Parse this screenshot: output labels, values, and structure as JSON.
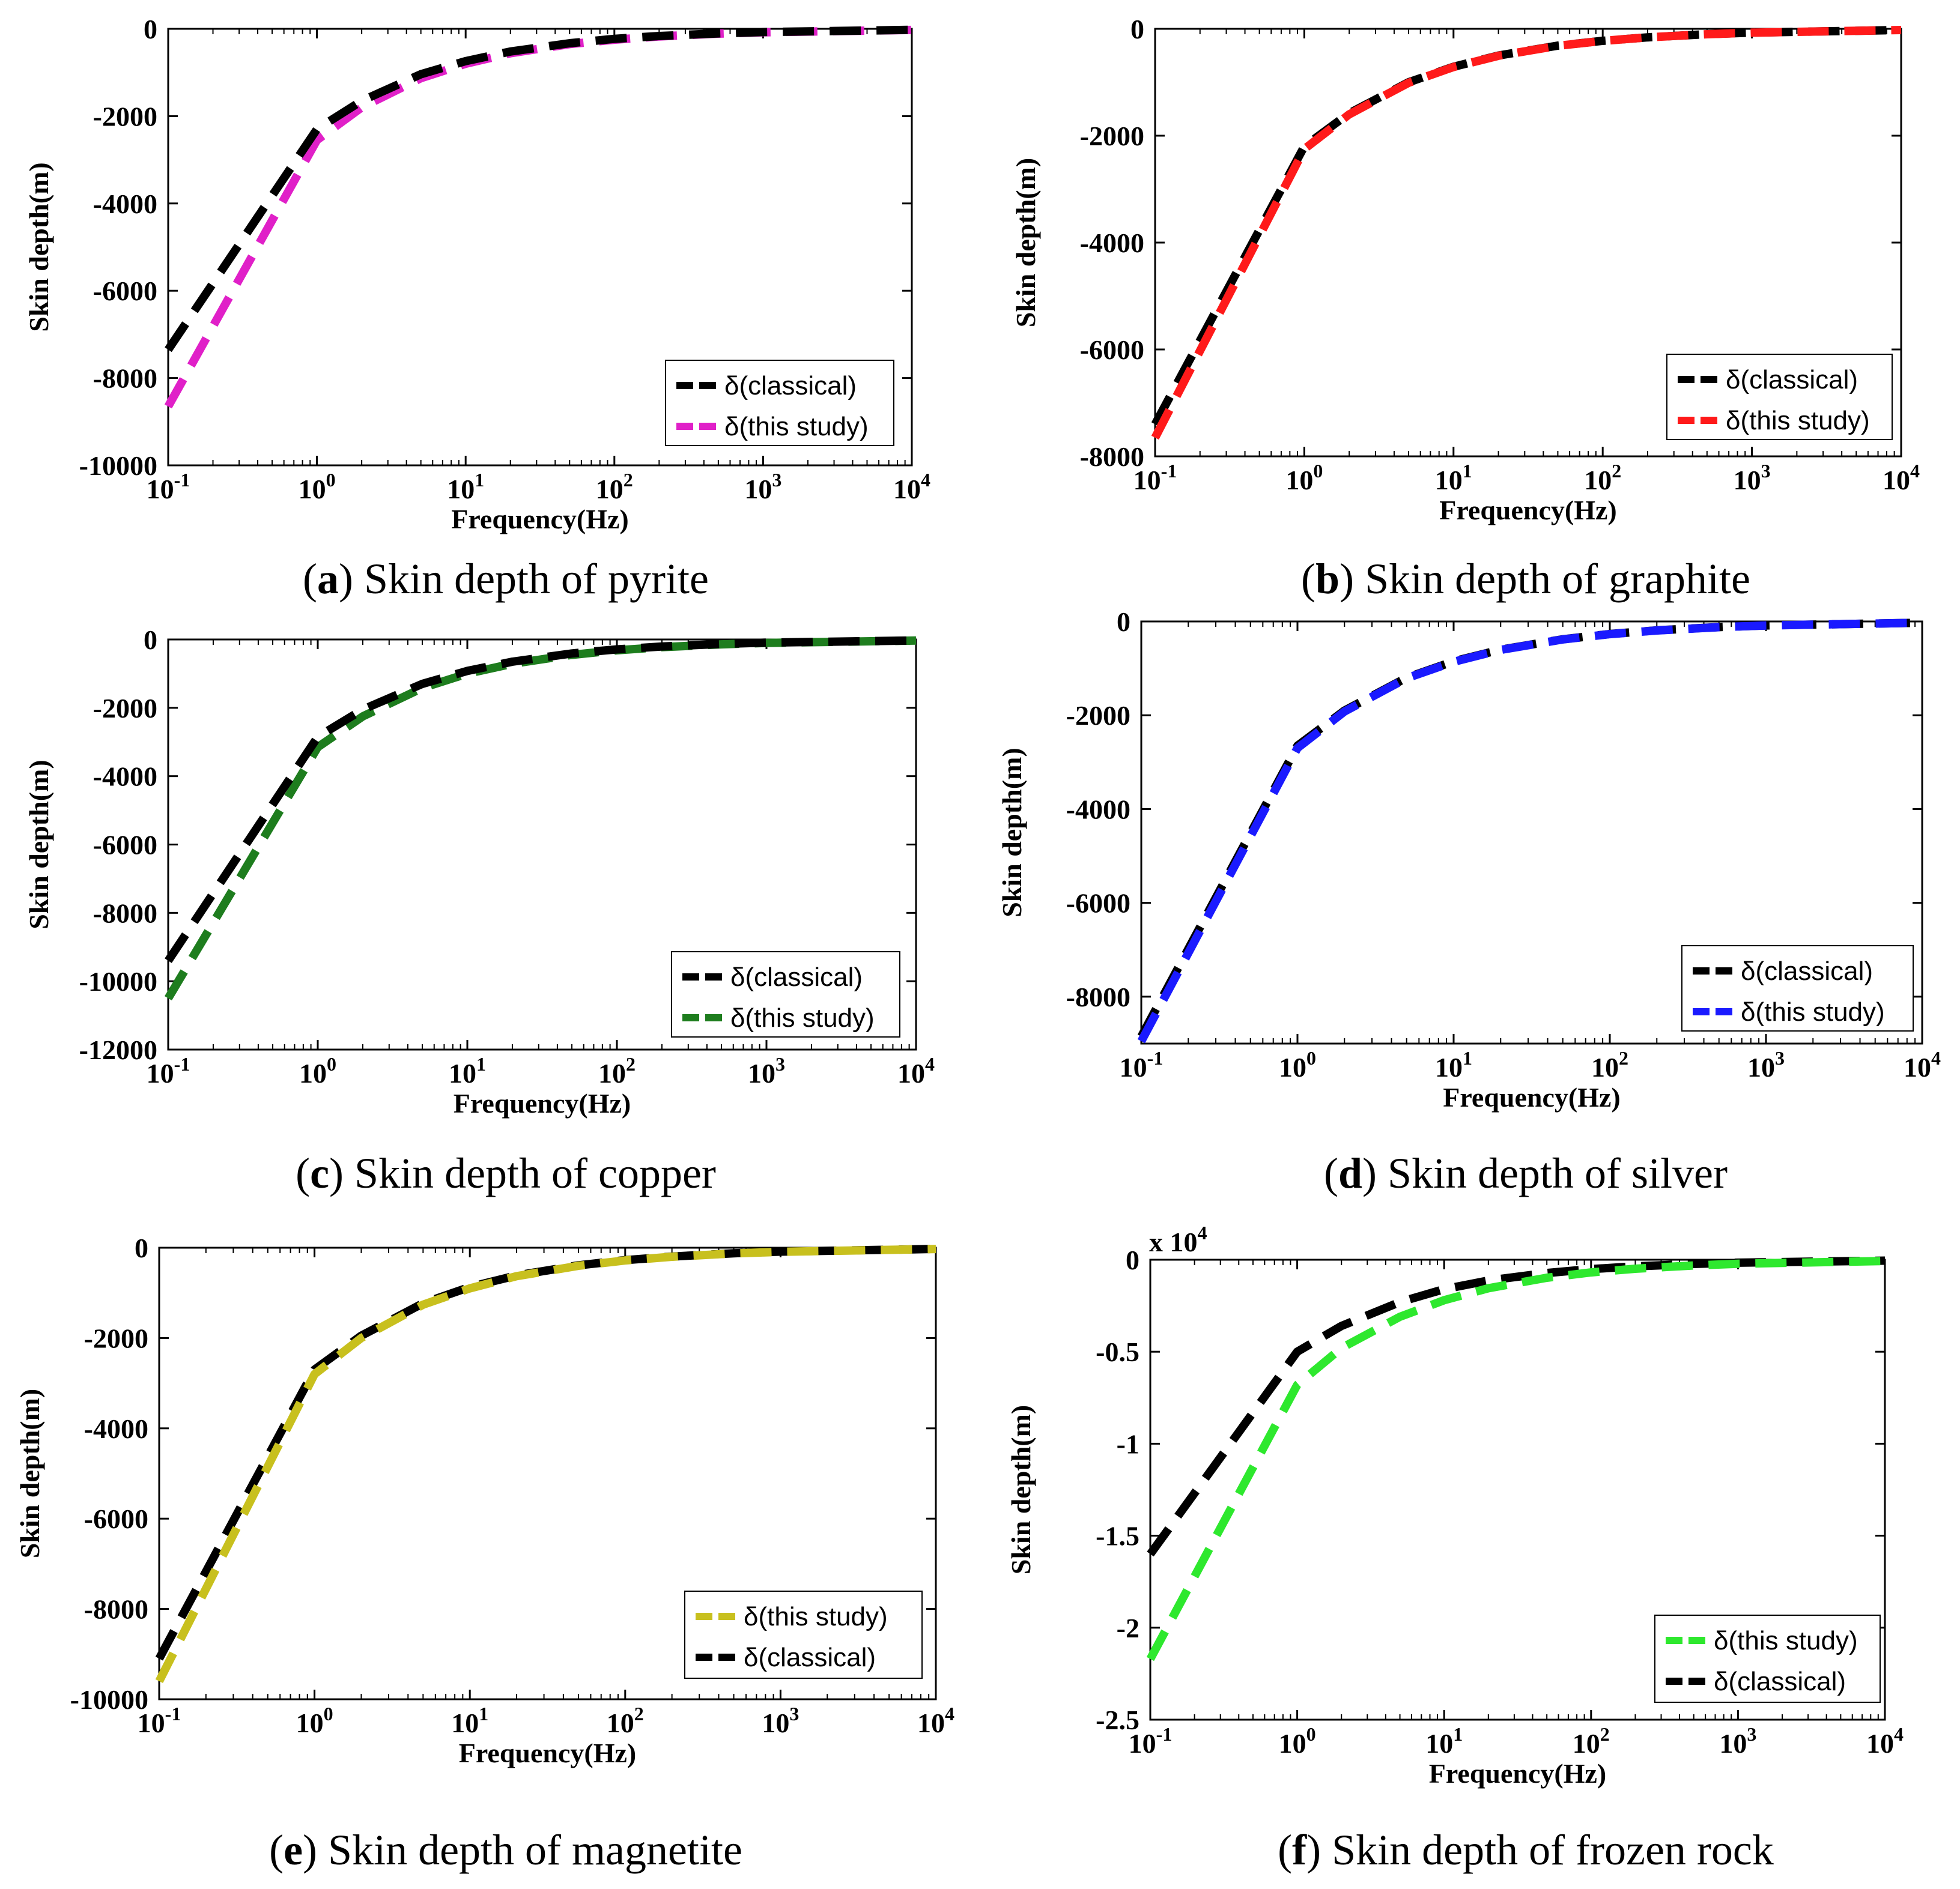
{
  "figure": {
    "axes_labels": {
      "x": "Frequency(Hz)",
      "y": "Skin depth(m)"
    },
    "legend_labels": {
      "classical": "δ(classical)",
      "this_study": "δ(this study)"
    },
    "colors": {
      "classical": "#000000",
      "pyrite": "#e020c8",
      "graphite": "#ff1a1a",
      "copper": "#1e7d1e",
      "silver": "#1a1aff",
      "magnetite": "#c8c01e",
      "frozen_rock": "#2ee82e"
    },
    "captions": [
      {
        "letter": "a",
        "text": " Skin depth of pyrite"
      },
      {
        "letter": "b",
        "text": " Skin depth of graphite"
      },
      {
        "letter": "c",
        "text": " Skin depth of copper"
      },
      {
        "letter": "d",
        "text": " Skin depth of silver"
      },
      {
        "letter": "e",
        "text": " Skin depth of magnetite"
      },
      {
        "letter": "f",
        "text": " Skin depth of frozen rock"
      }
    ]
  },
  "chart_data": [
    {
      "id": "a",
      "type": "line",
      "title": "Skin depth of pyrite",
      "xlabel": "Frequency(Hz)",
      "ylabel": "Skin depth(m)",
      "xscale": "log",
      "xlim": [
        0.1,
        10000
      ],
      "ylim": [
        -10000,
        0
      ],
      "yticks": [
        "0",
        "-2000",
        "-4000",
        "-6000",
        "-8000",
        "-10000"
      ],
      "ytick_values": [
        0,
        -2000,
        -4000,
        -6000,
        -8000,
        -10000
      ],
      "xticks": [
        0.1,
        1,
        10,
        100,
        1000,
        10000
      ],
      "legend_position": "bottom-right",
      "x": [
        0.1,
        1,
        2,
        5,
        10,
        20,
        50,
        100,
        200,
        500,
        1000,
        10000
      ],
      "series": [
        {
          "name": "δ(classical)",
          "color_key": "classical",
          "values": [
            -7350,
            -2300,
            -1650,
            -1040,
            -740,
            -520,
            -330,
            -230,
            -165,
            -105,
            -74,
            -23
          ]
        },
        {
          "name": "δ(this study)",
          "color_key": "pyrite",
          "values": [
            -8650,
            -2550,
            -1800,
            -1130,
            -800,
            -560,
            -350,
            -250,
            -175,
            -110,
            -80,
            -25
          ]
        }
      ]
    },
    {
      "id": "b",
      "type": "line",
      "title": "Skin depth of graphite",
      "xlabel": "Frequency(Hz)",
      "ylabel": "Skin depth(m)",
      "xscale": "log",
      "xlim": [
        0.1,
        10000
      ],
      "ylim": [
        -8000,
        0
      ],
      "yticks": [
        "0",
        "-2000",
        "-4000",
        "-6000",
        "-8000"
      ],
      "ytick_values": [
        0,
        -2000,
        -4000,
        -6000,
        -8000
      ],
      "xticks": [
        0.1,
        1,
        10,
        100,
        1000,
        10000
      ],
      "legend_position": "bottom-right",
      "x": [
        0.1,
        1,
        2,
        5,
        10,
        20,
        50,
        100,
        200,
        500,
        1000,
        10000
      ],
      "series": [
        {
          "name": "δ(classical)",
          "color_key": "classical",
          "values": [
            -7400,
            -2200,
            -1580,
            -1000,
            -710,
            -500,
            -315,
            -225,
            -160,
            -100,
            -71,
            -22
          ]
        },
        {
          "name": "δ(this study)",
          "color_key": "graphite",
          "values": [
            -7650,
            -2250,
            -1600,
            -1010,
            -715,
            -505,
            -318,
            -226,
            -160,
            -101,
            -72,
            -23
          ]
        }
      ]
    },
    {
      "id": "c",
      "type": "line",
      "title": "Skin depth of copper",
      "xlabel": "Frequency(Hz)",
      "ylabel": "Skin depth(m)",
      "xscale": "log",
      "xlim": [
        0.1,
        10000
      ],
      "ylim": [
        -12000,
        0
      ],
      "yticks": [
        "0",
        "-2000",
        "-4000",
        "-6000",
        "-8000",
        "-10000",
        "-12000"
      ],
      "ytick_values": [
        0,
        -2000,
        -4000,
        -6000,
        -8000,
        -10000,
        -12000
      ],
      "xticks": [
        0.1,
        1,
        10,
        100,
        1000,
        10000
      ],
      "legend_position": "bottom-right",
      "x": [
        0.1,
        1,
        2,
        5,
        10,
        20,
        50,
        100,
        200,
        500,
        1000,
        10000
      ],
      "series": [
        {
          "name": "δ(classical)",
          "color_key": "classical",
          "values": [
            -9400,
            -2850,
            -2050,
            -1300,
            -920,
            -650,
            -410,
            -290,
            -205,
            -130,
            -92,
            -29
          ]
        },
        {
          "name": "δ(this study)",
          "color_key": "copper",
          "values": [
            -10500,
            -3150,
            -2250,
            -1420,
            -1000,
            -710,
            -450,
            -316,
            -225,
            -142,
            -100,
            -32
          ]
        }
      ]
    },
    {
      "id": "d",
      "type": "line",
      "title": "Skin depth of silver",
      "xlabel": "Frequency(Hz)",
      "ylabel": "Skin depth(m)",
      "xscale": "log",
      "xlim": [
        0.1,
        10000
      ],
      "ylim": [
        -9000,
        0
      ],
      "yticks": [
        "0",
        "-2000",
        "-4000",
        "-6000",
        "-8000"
      ],
      "ytick_values": [
        0,
        -2000,
        -4000,
        -6000,
        -8000
      ],
      "xticks": [
        0.1,
        1,
        10,
        100,
        1000,
        10000
      ],
      "legend_position": "bottom-right",
      "x": [
        0.1,
        1,
        2,
        5,
        10,
        20,
        50,
        100,
        200,
        500,
        1000,
        10000
      ],
      "series": [
        {
          "name": "δ(classical)",
          "color_key": "classical",
          "values": [
            -8850,
            -2650,
            -1900,
            -1200,
            -850,
            -600,
            -380,
            -268,
            -190,
            -120,
            -85,
            -27
          ]
        },
        {
          "name": "δ(this study)",
          "color_key": "silver",
          "values": [
            -8950,
            -2700,
            -1920,
            -1210,
            -860,
            -605,
            -383,
            -270,
            -192,
            -121,
            -86,
            -27
          ]
        }
      ]
    },
    {
      "id": "e",
      "type": "line",
      "title": "Skin depth of magnetite",
      "xlabel": "Frequency(Hz)",
      "ylabel": "Skin depth(m)",
      "xscale": "log",
      "xlim": [
        0.1,
        10000
      ],
      "ylim": [
        -10000,
        0
      ],
      "yticks": [
        "0",
        "-2000",
        "-4000",
        "-6000",
        "-8000",
        "-10000"
      ],
      "ytick_values": [
        0,
        -2000,
        -4000,
        -6000,
        -8000,
        -10000
      ],
      "xticks": [
        0.1,
        1,
        10,
        100,
        1000,
        10000
      ],
      "legend_position": "bottom-right",
      "x": [
        0.1,
        1,
        2,
        5,
        10,
        20,
        50,
        100,
        200,
        500,
        1000,
        10000
      ],
      "series": [
        {
          "name": "δ(this study)",
          "color_key": "magnetite",
          "values": [
            -9600,
            -2800,
            -2000,
            -1260,
            -900,
            -630,
            -400,
            -282,
            -200,
            -126,
            -90,
            -28
          ]
        },
        {
          "name": "δ(classical)",
          "color_key": "classical",
          "values": [
            -9100,
            -2700,
            -1950,
            -1230,
            -870,
            -615,
            -390,
            -275,
            -195,
            -123,
            -87,
            -27
          ]
        }
      ]
    },
    {
      "id": "f",
      "type": "line",
      "title": "Skin depth of frozen rock",
      "xlabel": "Frequency(Hz)",
      "ylabel": "Skin depth(m)",
      "xscale": "log",
      "xlim": [
        0.1,
        10000
      ],
      "ylim": [
        -2.5,
        0
      ],
      "y_multiplier_base": "x 10",
      "y_multiplier_exp": "4",
      "yticks": [
        "0",
        "-0.5",
        "-1",
        "-1.5",
        "-2",
        "-2.5"
      ],
      "ytick_values": [
        0,
        -0.5,
        -1,
        -1.5,
        -2,
        -2.5
      ],
      "xticks": [
        0.1,
        1,
        10,
        100,
        1000,
        10000
      ],
      "legend_position": "bottom-right",
      "x": [
        0.1,
        1,
        2,
        5,
        10,
        20,
        50,
        100,
        200,
        500,
        1000,
        10000
      ],
      "series": [
        {
          "name": "δ(this study)",
          "color_key": "frozen_rock",
          "values": [
            -2.17,
            -0.68,
            -0.48,
            -0.31,
            -0.22,
            -0.155,
            -0.098,
            -0.069,
            -0.049,
            -0.031,
            -0.022,
            -0.007
          ]
        },
        {
          "name": "δ(classical)",
          "color_key": "classical",
          "values": [
            -1.6,
            -0.5,
            -0.36,
            -0.23,
            -0.16,
            -0.113,
            -0.072,
            -0.051,
            -0.036,
            -0.023,
            -0.016,
            -0.005
          ]
        }
      ]
    }
  ]
}
